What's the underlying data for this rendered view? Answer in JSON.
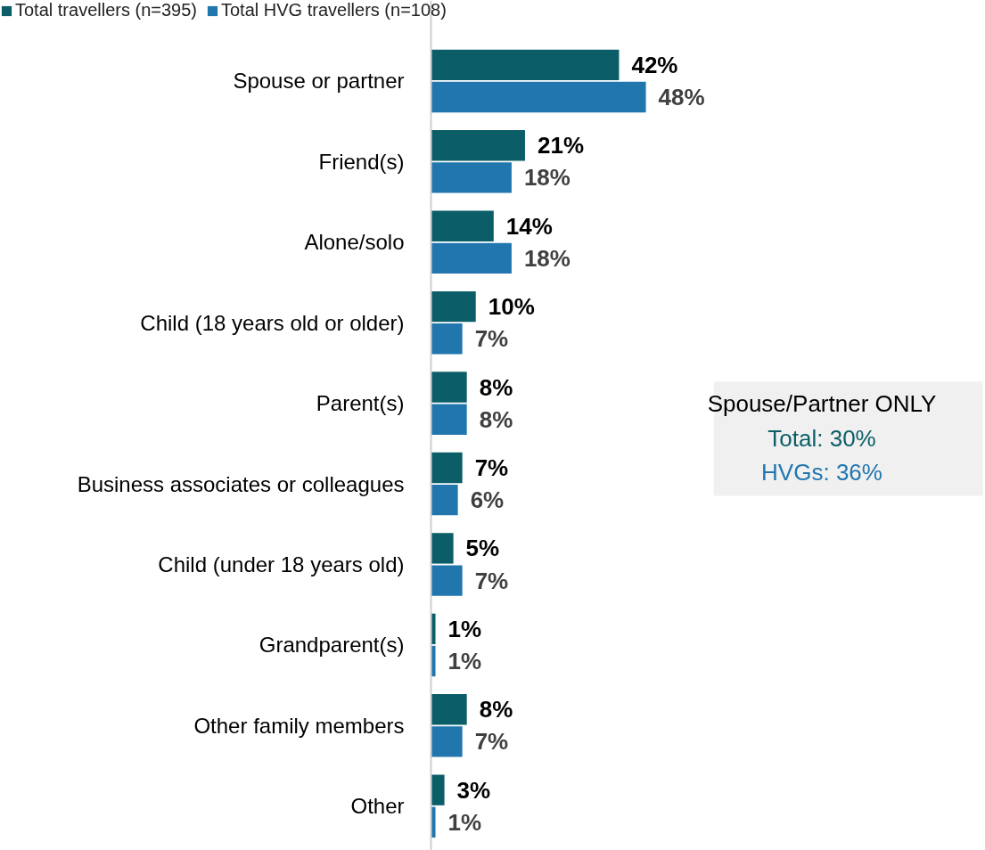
{
  "chart_data": {
    "type": "bar",
    "orientation": "horizontal",
    "categories": [
      "Spouse or partner",
      "Friend(s)",
      "Alone/solo",
      "Child (18 years old or older)",
      "Parent(s)",
      "Business associates or colleagues",
      "Child (under 18 years old)",
      "Grandparent(s)",
      "Other family members",
      "Other"
    ],
    "series": [
      {
        "name": "Total travellers (n=395)",
        "color": "#0b5e68",
        "values": [
          42,
          21,
          14,
          10,
          8,
          7,
          5,
          1,
          8,
          3
        ],
        "value_labels": [
          "42%",
          "21%",
          "14%",
          "10%",
          "8%",
          "7%",
          "5%",
          "1%",
          "8%",
          "3%"
        ]
      },
      {
        "name": "Total HVG travellers (n=108)",
        "color": "#2176ae",
        "values": [
          48,
          18,
          18,
          7,
          8,
          6,
          7,
          1,
          7,
          1
        ],
        "value_labels": [
          "48%",
          "18%",
          "18%",
          "7%",
          "8%",
          "6%",
          "7%",
          "1%",
          "7%",
          "1%"
        ]
      }
    ],
    "legend": "top left",
    "grid": false,
    "annotations": [
      "Spouse/Partner ONLY",
      "Total: 30%",
      "HVGs: 36%"
    ]
  }
}
